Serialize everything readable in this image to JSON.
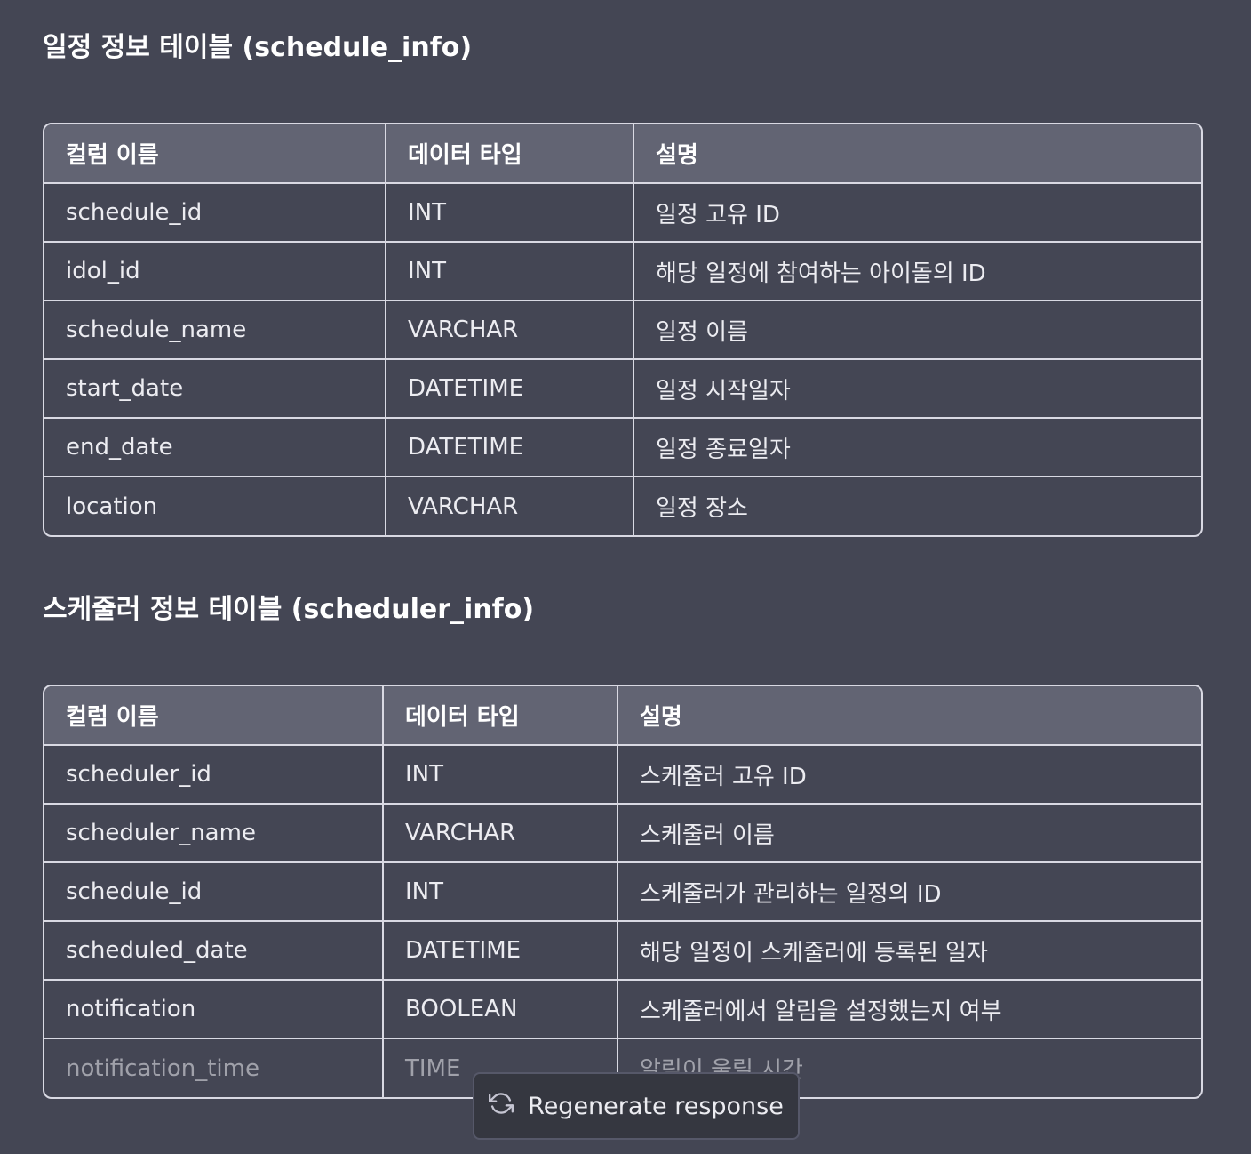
{
  "schedule_info": {
    "title": "일정 정보 테이블 (schedule_info)",
    "headers": [
      "컬럼 이름",
      "데이터 타입",
      "설명"
    ],
    "rows": [
      [
        "schedule_id",
        "INT",
        "일정 고유 ID"
      ],
      [
        "idol_id",
        "INT",
        "해당 일정에 참여하는 아이돌의 ID"
      ],
      [
        "schedule_name",
        "VARCHAR",
        "일정 이름"
      ],
      [
        "start_date",
        "DATETIME",
        "일정 시작일자"
      ],
      [
        "end_date",
        "DATETIME",
        "일정 종료일자"
      ],
      [
        "location",
        "VARCHAR",
        "일정 장소"
      ]
    ]
  },
  "scheduler_info": {
    "title": "스케줄러 정보 테이블 (scheduler_info)",
    "headers": [
      "컬럼 이름",
      "데이터 타입",
      "설명"
    ],
    "rows": [
      [
        "scheduler_id",
        "INT",
        "스케줄러 고유 ID"
      ],
      [
        "scheduler_name",
        "VARCHAR",
        "스케줄러 이름"
      ],
      [
        "schedule_id",
        "INT",
        "스케줄러가 관리하는 일정의 ID"
      ],
      [
        "scheduled_date",
        "DATETIME",
        "해당 일정이 스케줄러에 등록된 일자"
      ],
      [
        "notification",
        "BOOLEAN",
        "스케줄러에서 알림을 설정했는지 여부"
      ],
      [
        "notification_time",
        "TIME",
        "알림이 울릴 시간"
      ]
    ]
  },
  "regenerate": {
    "label": "Regenerate response",
    "icon": "refresh-icon"
  }
}
